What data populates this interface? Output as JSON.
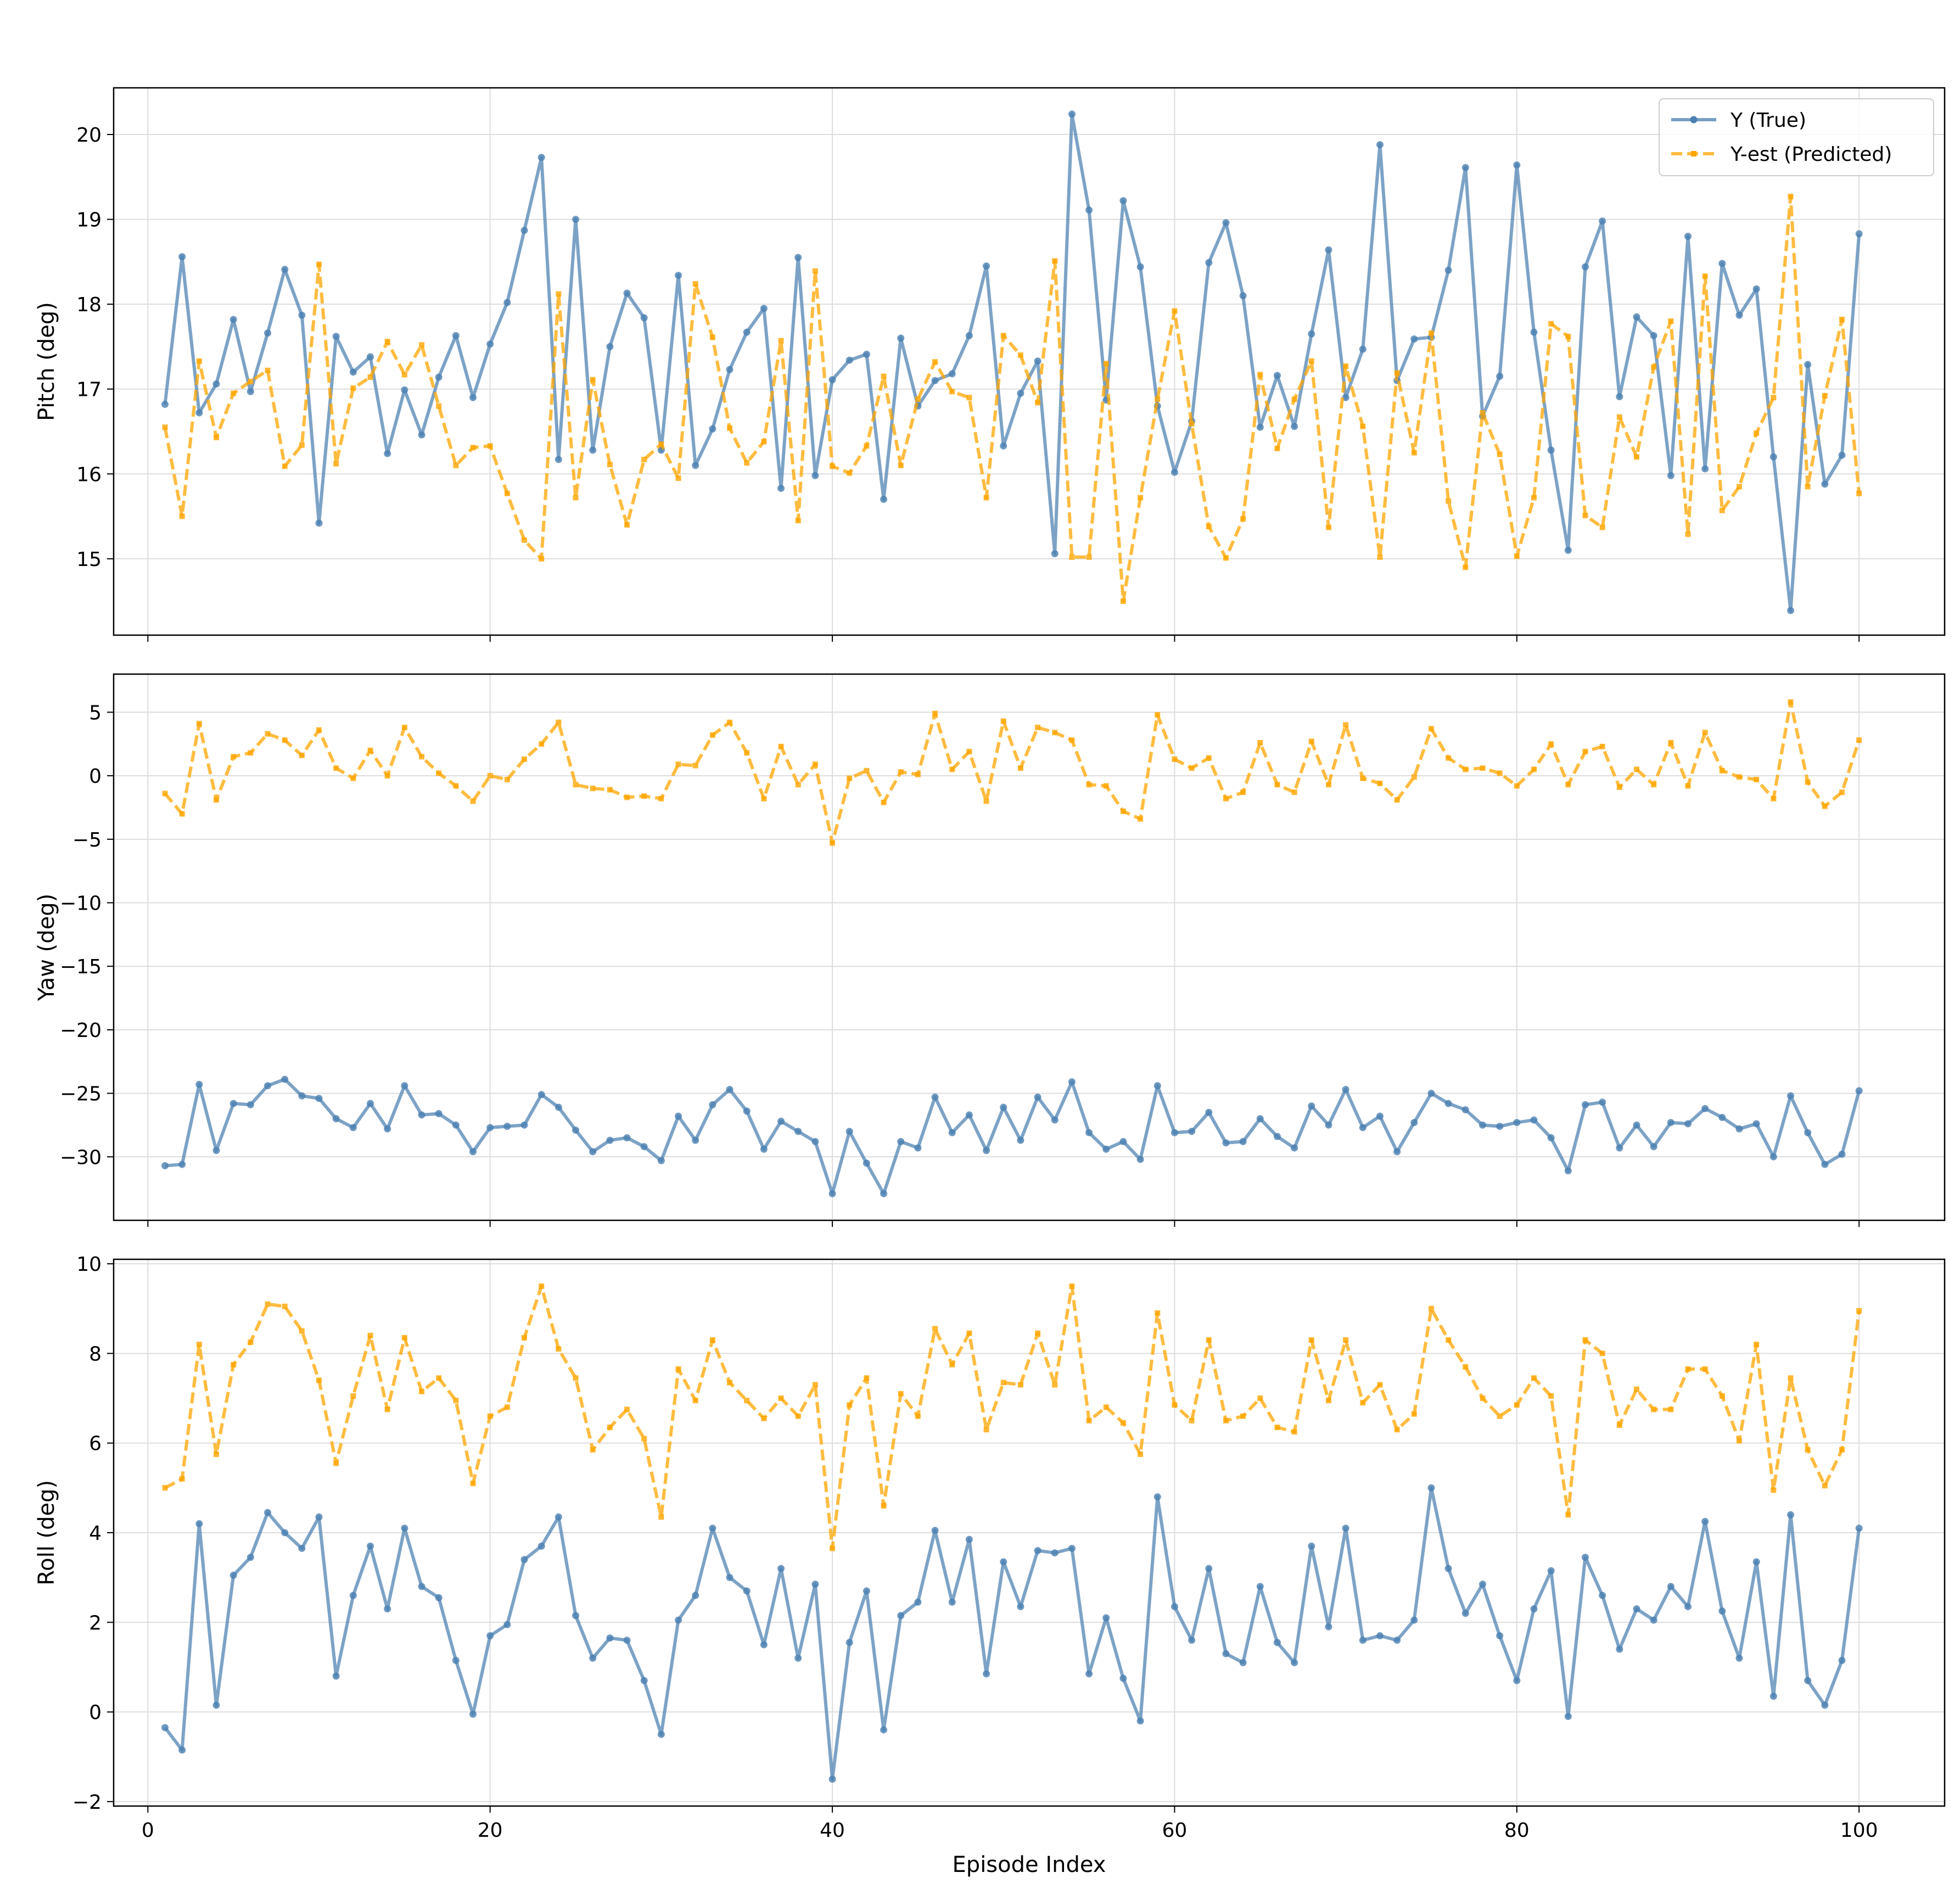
{
  "colors": {
    "true_series": "#4a7fb0",
    "pred_series": "#ffa500",
    "grid": "#dddddd",
    "axis": "#000000"
  },
  "chart_data": {
    "type": "line",
    "x": [
      1,
      2,
      3,
      4,
      5,
      6,
      7,
      8,
      9,
      10,
      11,
      12,
      13,
      14,
      15,
      16,
      17,
      18,
      19,
      20,
      21,
      22,
      23,
      24,
      25,
      26,
      27,
      28,
      29,
      30,
      31,
      32,
      33,
      34,
      35,
      36,
      37,
      38,
      39,
      40,
      41,
      42,
      43,
      44,
      45,
      46,
      47,
      48,
      49,
      50,
      51,
      52,
      53,
      54,
      55,
      56,
      57,
      58,
      59,
      60,
      61,
      62,
      63,
      64,
      65,
      66,
      67,
      68,
      69,
      70,
      71,
      72,
      73,
      74,
      75,
      76,
      77,
      78,
      79,
      80,
      81,
      82,
      83,
      84,
      85,
      86,
      87,
      88,
      89,
      90,
      91,
      92,
      93,
      94,
      95,
      96,
      97,
      98,
      99,
      100
    ],
    "xlabel": "Episode Index",
    "xlim": [
      -2,
      105
    ],
    "xticks": [
      0,
      20,
      40,
      60,
      80,
      100
    ],
    "xtick_labels": [
      "0",
      "20",
      "40",
      "60",
      "80",
      "100"
    ],
    "legend": {
      "entries": [
        "Y (True)",
        "Y-est (Predicted)"
      ],
      "placement": "top-right",
      "panel": 0
    },
    "grid": true,
    "panels": [
      {
        "ylabel": "Pitch (deg)",
        "ylim": [
          14.1,
          20.55
        ],
        "yticks": [
          15,
          16,
          17,
          18,
          19,
          20
        ],
        "ytick_labels": [
          "15",
          "16",
          "17",
          "18",
          "19",
          "20"
        ],
        "series": [
          {
            "name": "Y (True)",
            "style": "solid",
            "values": [
              16.82,
              18.56,
              16.72,
              17.06,
              17.82,
              16.97,
              17.66,
              18.41,
              17.87,
              15.42,
              17.62,
              17.2,
              17.38,
              16.24,
              16.99,
              16.46,
              17.14,
              17.63,
              16.9,
              17.53,
              18.02,
              18.87,
              19.73,
              16.17,
              19,
              16.28,
              17.5,
              18.13,
              17.84,
              16.28,
              18.34,
              16.1,
              16.53,
              17.23,
              17.67,
              17.95,
              15.83,
              18.55,
              15.98,
              17.11,
              17.34,
              17.41,
              15.7,
              17.6,
              16.8,
              17.1,
              17.18,
              17.63,
              18.45,
              16.33,
              16.95,
              17.33,
              15.06,
              20.24,
              19.11,
              16.87,
              19.22,
              18.44,
              16.8,
              16.02,
              16.62,
              18.49,
              18.96,
              18.1,
              16.55,
              17.16,
              16.56,
              17.65,
              18.64,
              16.9,
              17.47,
              19.88,
              17.1,
              17.59,
              17.61,
              18.4,
              19.61,
              16.68,
              17.15,
              19.64,
              17.67,
              16.28,
              15.1,
              18.44,
              18.98,
              16.91,
              17.85,
              17.63,
              15.98,
              18.8,
              16.06,
              18.48,
              17.87,
              18.18,
              16.2,
              14.39,
              17.29,
              15.88,
              16.22,
              18.83
            ]
          },
          {
            "name": "Y-est (Predicted)",
            "style": "dashed",
            "values": [
              16.55,
              15.5,
              17.33,
              16.43,
              16.95,
              17.09,
              17.22,
              16.09,
              16.34,
              18.47,
              16.12,
              17.01,
              17.14,
              17.56,
              17.17,
              17.52,
              16.8,
              16.1,
              16.31,
              16.33,
              15.77,
              15.22,
              15,
              18.12,
              15.72,
              17.11,
              16.11,
              15.4,
              16.17,
              16.35,
              15.95,
              18.24,
              17.61,
              16.54,
              16.13,
              16.38,
              17.57,
              15.45,
              18.39,
              16.09,
              16.01,
              16.33,
              17.15,
              16.1,
              16.88,
              17.32,
              16.97,
              16.9,
              15.72,
              17.63,
              17.4,
              16.84,
              18.51,
              15.02,
              15.02,
              17.3,
              14.5,
              15.72,
              16.88,
              17.92,
              16.59,
              15.38,
              15.01,
              15.47,
              17.17,
              16.3,
              16.88,
              17.33,
              15.37,
              17.27,
              16.56,
              15.02,
              17.19,
              16.25,
              17.66,
              15.68,
              14.9,
              16.72,
              16.23,
              15.03,
              15.72,
              17.77,
              17.62,
              15.51,
              15.37,
              16.67,
              16.2,
              17.26,
              17.8,
              15.29,
              18.33,
              15.57,
              15.85,
              16.48,
              16.9,
              19.27,
              15.85,
              16.92,
              17.82,
              15.77
            ]
          }
        ]
      },
      {
        "ylabel": "Yaw (deg)",
        "ylim": [
          -35,
          8
        ],
        "yticks": [
          -30,
          -25,
          -20,
          -15,
          -10,
          -5,
          0,
          5
        ],
        "ytick_labels": [
          "−30",
          "−25",
          "−20",
          "−15",
          "−10",
          "−5",
          "0",
          "5"
        ],
        "series": [
          {
            "name": "Y (True)",
            "style": "solid",
            "values": [
              -30.7,
              -30.6,
              -24.3,
              -29.5,
              -25.8,
              -25.9,
              -24.4,
              -23.9,
              -25.2,
              -25.4,
              -27,
              -27.7,
              -25.8,
              -27.8,
              -24.4,
              -26.7,
              -26.6,
              -27.5,
              -29.6,
              -27.7,
              -27.6,
              -27.5,
              -25.1,
              -26.1,
              -27.9,
              -29.6,
              -28.7,
              -28.5,
              -29.2,
              -30.3,
              -26.8,
              -28.7,
              -25.9,
              -24.7,
              -26.4,
              -29.4,
              -27.2,
              -28,
              -28.8,
              -32.9,
              -28,
              -30.5,
              -32.9,
              -28.8,
              -29.3,
              -25.3,
              -28.1,
              -26.7,
              -29.5,
              -26.1,
              -28.7,
              -25.3,
              -27.1,
              -24.1,
              -28.1,
              -29.4,
              -28.8,
              -30.2,
              -24.4,
              -28.1,
              -28,
              -26.5,
              -28.9,
              -28.8,
              -27,
              -28.4,
              -29.3,
              -26,
              -27.5,
              -24.7,
              -27.7,
              -26.8,
              -29.6,
              -27.3,
              -25,
              -25.8,
              -26.3,
              -27.5,
              -27.6,
              -27.3,
              -27.1,
              -28.5,
              -31.1,
              -25.9,
              -25.7,
              -29.3,
              -27.5,
              -29.2,
              -27.3,
              -27.4,
              -26.2,
              -26.9,
              -27.8,
              -27.4,
              -30,
              -25.2,
              -28.1,
              -30.6,
              -29.8,
              -24.8
            ]
          },
          {
            "name": "Y-est (Predicted)",
            "style": "dashed",
            "values": [
              -1.4,
              -3,
              4.1,
              -1.9,
              1.5,
              1.8,
              3.3,
              2.8,
              1.6,
              3.6,
              0.6,
              -0.2,
              2,
              0,
              3.8,
              1.5,
              0.2,
              -0.8,
              -2,
              0,
              -0.3,
              1.3,
              2.5,
              4.2,
              -0.7,
              -1,
              -1.1,
              -1.7,
              -1.6,
              -1.8,
              0.9,
              0.8,
              3.2,
              4.2,
              1.8,
              -1.8,
              2.3,
              -0.7,
              0.9,
              -5.3,
              -0.2,
              0.4,
              -2.1,
              0.3,
              0.1,
              4.9,
              0.5,
              1.9,
              -2,
              4.3,
              0.6,
              3.8,
              3.4,
              2.8,
              -0.7,
              -0.8,
              -2.8,
              -3.4,
              4.8,
              1.3,
              0.6,
              1.4,
              -1.8,
              -1.3,
              2.6,
              -0.7,
              -1.3,
              2.7,
              -0.7,
              4,
              -0.2,
              -0.6,
              -1.9,
              -0.1,
              3.7,
              1.4,
              0.5,
              0.6,
              0.2,
              -0.8,
              0.5,
              2.5,
              -0.7,
              1.9,
              2.3,
              -0.9,
              0.5,
              -0.7,
              2.6,
              -0.8,
              3.4,
              0.4,
              -0.1,
              -0.3,
              -1.8,
              5.8,
              -0.5,
              -2.4,
              -1.3,
              2.8
            ]
          }
        ]
      },
      {
        "ylabel": "Roll (deg)",
        "ylim": [
          -2.1,
          10.1
        ],
        "yticks": [
          -2,
          0,
          2,
          4,
          6,
          8,
          10
        ],
        "ytick_labels": [
          "−2",
          "0",
          "2",
          "4",
          "6",
          "8",
          "10"
        ],
        "series": [
          {
            "name": "Y (True)",
            "style": "solid",
            "values": [
              -0.35,
              -0.85,
              4.2,
              0.15,
              3.05,
              3.45,
              4.45,
              4,
              3.65,
              4.35,
              0.8,
              2.6,
              3.7,
              2.3,
              4.1,
              2.8,
              2.55,
              1.15,
              -0.05,
              1.7,
              1.95,
              3.4,
              3.7,
              4.35,
              2.15,
              1.2,
              1.65,
              1.6,
              0.7,
              -0.5,
              2.05,
              2.6,
              4.1,
              3,
              2.7,
              1.5,
              3.2,
              1.2,
              2.85,
              -1.5,
              1.55,
              2.7,
              -0.4,
              2.15,
              2.45,
              4.05,
              2.45,
              3.85,
              0.85,
              3.35,
              2.35,
              3.6,
              3.55,
              3.65,
              0.85,
              2.1,
              0.75,
              -0.2,
              4.8,
              2.35,
              1.6,
              3.2,
              1.3,
              1.1,
              2.8,
              1.55,
              1.1,
              3.7,
              1.9,
              4.1,
              1.6,
              1.7,
              1.6,
              2.05,
              5,
              3.2,
              2.2,
              2.85,
              1.7,
              0.7,
              2.3,
              3.15,
              -0.1,
              3.45,
              2.6,
              1.4,
              2.3,
              2.05,
              2.8,
              2.35,
              4.25,
              2.25,
              1.2,
              3.35,
              0.35,
              4.4,
              0.7,
              0.15,
              1.15,
              4.1
            ]
          },
          {
            "name": "Y-est (Predicted)",
            "style": "dashed",
            "values": [
              5,
              5.2,
              8.2,
              5.75,
              7.75,
              8.25,
              9.1,
              9.05,
              8.5,
              7.4,
              5.55,
              7.05,
              8.4,
              6.75,
              8.35,
              7.15,
              7.45,
              6.95,
              5.1,
              6.6,
              6.8,
              8.35,
              9.5,
              8.1,
              7.45,
              5.85,
              6.35,
              6.75,
              6.1,
              4.35,
              7.65,
              6.95,
              8.3,
              7.35,
              6.95,
              6.55,
              7,
              6.6,
              7.3,
              3.65,
              6.85,
              7.45,
              4.6,
              7.1,
              6.6,
              8.55,
              7.75,
              8.45,
              6.3,
              7.35,
              7.3,
              8.45,
              7.3,
              9.5,
              6.5,
              6.8,
              6.45,
              5.75,
              8.9,
              6.85,
              6.5,
              8.3,
              6.5,
              6.6,
              7,
              6.35,
              6.25,
              8.3,
              6.95,
              8.3,
              6.9,
              7.3,
              6.3,
              6.65,
              9,
              8.3,
              7.7,
              7,
              6.6,
              6.85,
              7.45,
              7.05,
              4.4,
              8.3,
              8,
              6.4,
              7.2,
              6.75,
              6.75,
              7.65,
              7.65,
              7.05,
              6.05,
              8.2,
              4.95,
              7.45,
              5.85,
              5.05,
              5.85,
              8.95
            ]
          }
        ]
      }
    ]
  }
}
